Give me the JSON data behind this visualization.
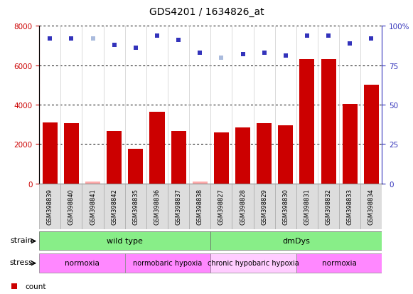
{
  "title": "GDS4201 / 1634826_at",
  "samples": [
    "GSM398839",
    "GSM398840",
    "GSM398841",
    "GSM398842",
    "GSM398835",
    "GSM398836",
    "GSM398837",
    "GSM398838",
    "GSM398827",
    "GSM398828",
    "GSM398829",
    "GSM398830",
    "GSM398831",
    "GSM398832",
    "GSM398833",
    "GSM398834"
  ],
  "counts": [
    3100,
    3050,
    100,
    2650,
    1750,
    3650,
    2650,
    100,
    2600,
    2850,
    3050,
    2950,
    6300,
    6300,
    4050,
    5000
  ],
  "ranks": [
    92,
    92,
    92,
    88,
    86,
    94,
    91,
    83,
    80,
    82,
    83,
    81,
    94,
    94,
    89,
    92
  ],
  "absent_count_indices": [
    2,
    7
  ],
  "absent_rank_indices": [
    2,
    8
  ],
  "strain_groups": [
    {
      "label": "wild type",
      "start": 0,
      "end": 8,
      "color": "#88ee88"
    },
    {
      "label": "dmDys",
      "start": 8,
      "end": 16,
      "color": "#88ee88"
    }
  ],
  "stress_groups": [
    {
      "label": "normoxia",
      "start": 0,
      "end": 4,
      "color": "#ff88ff"
    },
    {
      "label": "normobaric hypoxia",
      "start": 4,
      "end": 8,
      "color": "#ff88ff"
    },
    {
      "label": "chronic hypobaric hypoxia",
      "start": 8,
      "end": 12,
      "color": "#ffccff"
    },
    {
      "label": "normoxia",
      "start": 12,
      "end": 16,
      "color": "#ff88ff"
    }
  ],
  "bar_color": "#cc0000",
  "absent_bar_color": "#ffaaaa",
  "dot_color": "#3333bb",
  "absent_dot_color": "#aabbdd",
  "ylim_left": [
    0,
    8000
  ],
  "ylim_right": [
    0,
    100
  ],
  "yticks_left": [
    0,
    2000,
    4000,
    6000,
    8000
  ],
  "yticks_right": [
    0,
    25,
    50,
    75,
    100
  ]
}
